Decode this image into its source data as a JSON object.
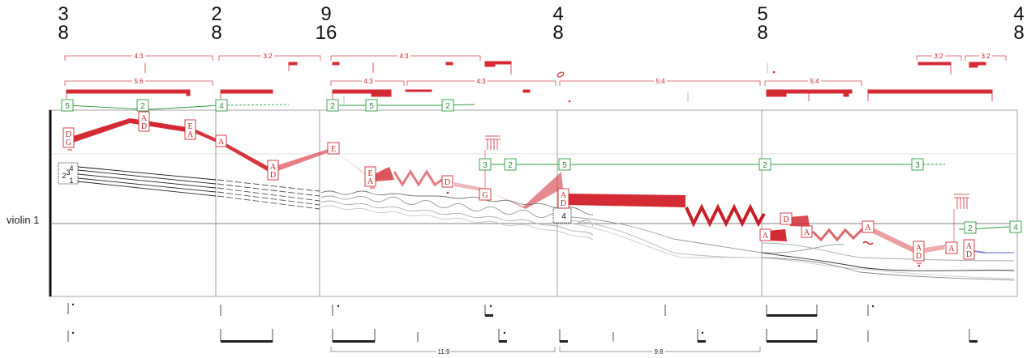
{
  "instrument": "violin 1",
  "time_signatures": [
    {
      "top": "3",
      "bottom": "8"
    },
    {
      "top": "2",
      "bottom": "8"
    },
    {
      "top": "9",
      "bottom": "16"
    },
    {
      "top": "4",
      "bottom": "8"
    },
    {
      "top": "5",
      "bottom": "8"
    },
    {
      "top": "4",
      "bottom": "8"
    }
  ],
  "tuplets_red": [
    "4:3",
    "3:2",
    "4:3",
    "5:6",
    "4:3",
    "4:3",
    "5:4",
    "5:4",
    "3:2",
    "3:2"
  ],
  "tuplets_bottom": [
    "11:9",
    "9:8"
  ],
  "green_numbers": [
    "5",
    "2",
    "4",
    "2",
    "5",
    "2",
    "3",
    "2",
    "5",
    "2",
    "3",
    "2",
    "4"
  ],
  "red_labels": [
    [
      "D",
      "G"
    ],
    [
      "A",
      "D"
    ],
    [
      "E",
      "A"
    ],
    [
      "A"
    ],
    [
      "A",
      "D"
    ],
    [
      "E"
    ],
    [
      "E",
      "A"
    ],
    [
      "D"
    ],
    [
      "G"
    ],
    [
      "A",
      "D"
    ],
    [
      "A"
    ],
    [
      "D"
    ],
    [
      "A"
    ],
    [
      "A"
    ],
    [
      "A",
      "D"
    ],
    [
      "A"
    ],
    [
      "A",
      "D"
    ]
  ],
  "string_box_left": [
    "4",
    "3",
    "2",
    "1"
  ],
  "string_box_mid": [
    "4"
  ]
}
